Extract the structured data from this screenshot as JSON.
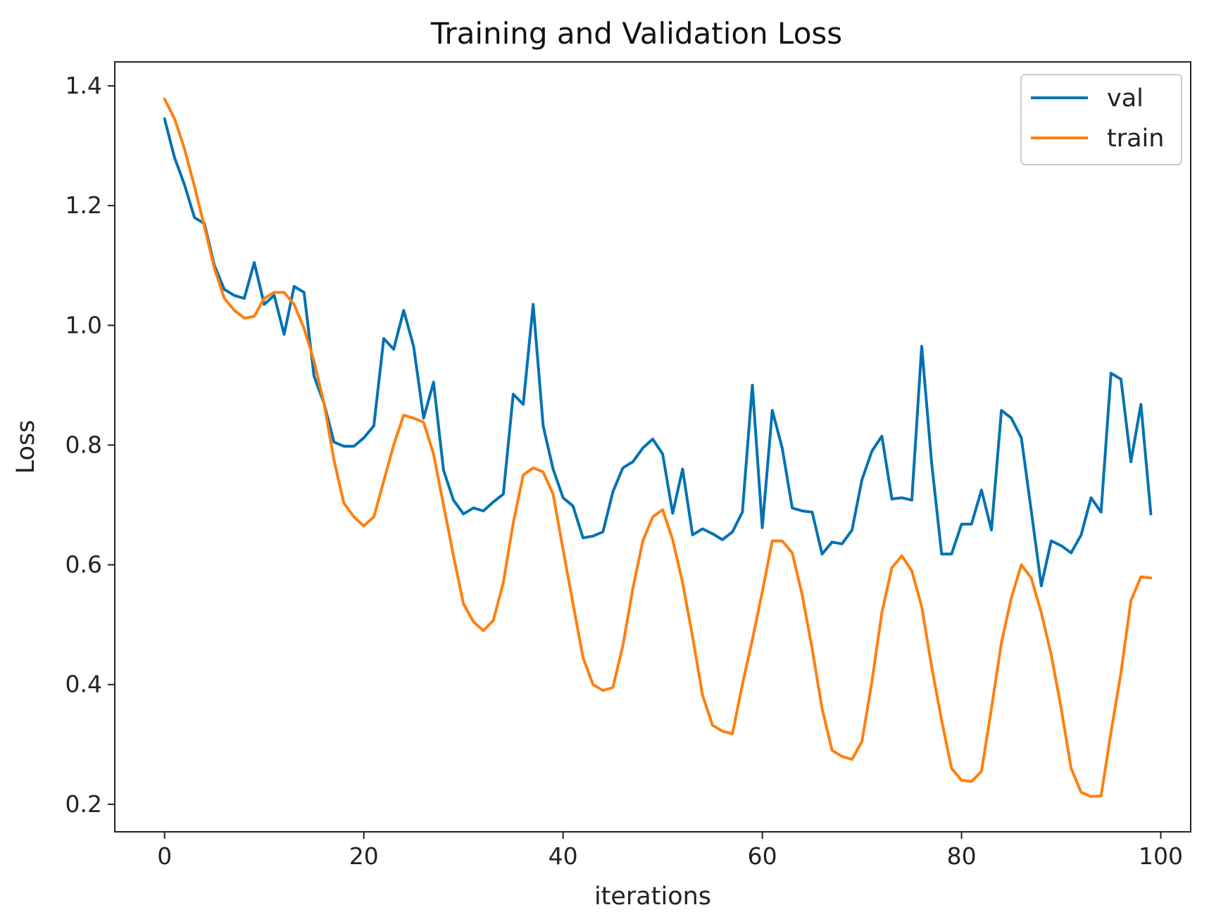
{
  "chart_data": {
    "type": "line",
    "title": "Training and Validation Loss",
    "xlabel": "iterations",
    "ylabel": "Loss",
    "xlim": [
      -5,
      103
    ],
    "ylim": [
      0.154,
      1.44
    ],
    "xticks": [
      0,
      20,
      40,
      60,
      80,
      100
    ],
    "yticks": [
      0.2,
      0.4,
      0.6,
      0.8,
      1.0,
      1.2,
      1.4
    ],
    "ytick_labels": [
      "0.2",
      "0.4",
      "0.6",
      "0.8",
      "1.0",
      "1.2",
      "1.4"
    ],
    "grid": false,
    "legend_position": "top-right",
    "series": [
      {
        "name": "val",
        "color": "#0072B2",
        "x": [
          0,
          1,
          2,
          3,
          4,
          5,
          6,
          7,
          8,
          9,
          10,
          11,
          12,
          13,
          14,
          15,
          16,
          17,
          18,
          19,
          20,
          21,
          22,
          23,
          24,
          25,
          26,
          27,
          28,
          29,
          30,
          31,
          32,
          33,
          34,
          35,
          36,
          37,
          38,
          39,
          40,
          41,
          42,
          43,
          44,
          45,
          46,
          47,
          48,
          49,
          50,
          51,
          52,
          53,
          54,
          55,
          56,
          57,
          58,
          59,
          60,
          61,
          62,
          63,
          64,
          65,
          66,
          67,
          68,
          69,
          70,
          71,
          72,
          73,
          74,
          75,
          76,
          77,
          78,
          79,
          80,
          81,
          82,
          83,
          84,
          85,
          86,
          87,
          88,
          89,
          90,
          91,
          92,
          93,
          94,
          95,
          96,
          97,
          98,
          99
        ],
        "values": [
          1.345,
          1.28,
          1.235,
          1.18,
          1.17,
          1.1,
          1.06,
          1.05,
          1.045,
          1.105,
          1.035,
          1.05,
          0.985,
          1.065,
          1.055,
          0.915,
          0.87,
          0.805,
          0.798,
          0.798,
          0.812,
          0.832,
          0.978,
          0.96,
          1.025,
          0.965,
          0.845,
          0.905,
          0.758,
          0.708,
          0.685,
          0.695,
          0.69,
          0.705,
          0.718,
          0.885,
          0.868,
          1.035,
          0.832,
          0.76,
          0.712,
          0.698,
          0.645,
          0.648,
          0.655,
          0.722,
          0.762,
          0.772,
          0.795,
          0.81,
          0.785,
          0.686,
          0.76,
          0.65,
          0.66,
          0.652,
          0.642,
          0.655,
          0.688,
          0.9,
          0.662,
          0.858,
          0.795,
          0.695,
          0.69,
          0.688,
          0.618,
          0.638,
          0.635,
          0.658,
          0.742,
          0.79,
          0.815,
          0.71,
          0.712,
          0.708,
          0.965,
          0.77,
          0.618,
          0.618,
          0.668,
          0.668,
          0.725,
          0.658,
          0.858,
          0.845,
          0.812,
          0.69,
          0.565,
          0.64,
          0.632,
          0.62,
          0.65,
          0.712,
          0.688,
          0.92,
          0.91,
          0.772,
          0.868,
          0.685
        ]
      },
      {
        "name": "train",
        "color": "#FF7F0E",
        "x": [
          0,
          1,
          2,
          3,
          4,
          5,
          6,
          7,
          8,
          9,
          10,
          11,
          12,
          13,
          14,
          15,
          16,
          17,
          18,
          19,
          20,
          21,
          22,
          23,
          24,
          25,
          26,
          27,
          28,
          29,
          30,
          31,
          32,
          33,
          34,
          35,
          36,
          37,
          38,
          39,
          40,
          41,
          42,
          43,
          44,
          45,
          46,
          47,
          48,
          49,
          50,
          51,
          52,
          53,
          54,
          55,
          56,
          57,
          58,
          59,
          60,
          61,
          62,
          63,
          64,
          65,
          66,
          67,
          68,
          69,
          70,
          71,
          72,
          73,
          74,
          75,
          76,
          77,
          78,
          79,
          80,
          81,
          82,
          83,
          84,
          85,
          86,
          87,
          88,
          89,
          90,
          91,
          92,
          93,
          94,
          95,
          96,
          97,
          98,
          99
        ],
        "values": [
          1.378,
          1.345,
          1.295,
          1.232,
          1.165,
          1.095,
          1.045,
          1.025,
          1.012,
          1.015,
          1.045,
          1.055,
          1.055,
          1.035,
          0.995,
          0.94,
          0.87,
          0.775,
          0.703,
          0.68,
          0.665,
          0.68,
          0.74,
          0.8,
          0.85,
          0.845,
          0.838,
          0.785,
          0.7,
          0.615,
          0.535,
          0.505,
          0.49,
          0.507,
          0.57,
          0.67,
          0.75,
          0.762,
          0.755,
          0.718,
          0.625,
          0.535,
          0.445,
          0.4,
          0.39,
          0.395,
          0.465,
          0.56,
          0.64,
          0.68,
          0.692,
          0.642,
          0.57,
          0.48,
          0.382,
          0.332,
          0.322,
          0.318,
          0.4,
          0.475,
          0.555,
          0.64,
          0.64,
          0.62,
          0.55,
          0.46,
          0.36,
          0.29,
          0.28,
          0.275,
          0.305,
          0.405,
          0.52,
          0.595,
          0.615,
          0.59,
          0.53,
          0.43,
          0.34,
          0.26,
          0.24,
          0.238,
          0.255,
          0.36,
          0.47,
          0.545,
          0.6,
          0.578,
          0.52,
          0.45,
          0.36,
          0.26,
          0.22,
          0.213,
          0.214,
          0.32,
          0.42,
          0.54,
          0.58,
          0.578
        ]
      }
    ]
  }
}
